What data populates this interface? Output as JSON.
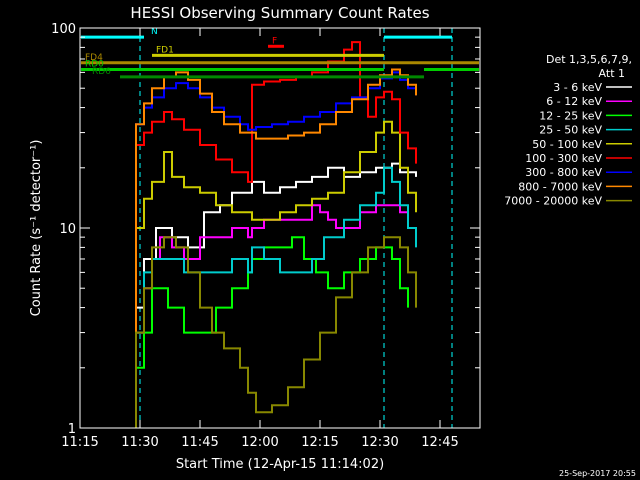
{
  "chart_data": {
    "type": "line",
    "title": "HESSI Observing Summary Count Rates",
    "xlabel": "Start Time (12-Apr-15 11:14:02)",
    "ylabel": "Count Rate (s⁻¹ detector⁻¹)",
    "x_unit": "minutes",
    "xlim": [
      0,
      100
    ],
    "ylim": [
      1,
      100
    ],
    "y_scale": "log",
    "x_ticks": [
      {
        "x": 0,
        "label": "11:15"
      },
      {
        "x": 15,
        "label": "11:30"
      },
      {
        "x": 30,
        "label": "11:45"
      },
      {
        "x": 45,
        "label": "12:00"
      },
      {
        "x": 60,
        "label": "12:15"
      },
      {
        "x": 75,
        "label": "12:30"
      },
      {
        "x": 90,
        "label": "12:45"
      }
    ],
    "y_ticks": [
      {
        "y": 1,
        "label": "1"
      },
      {
        "y": 10,
        "label": "10"
      },
      {
        "y": 100,
        "label": "100"
      }
    ],
    "legend": {
      "header1": "Det 1,3,5,6,7,9,",
      "header2": "Att 1",
      "placement": "right"
    },
    "series": [
      {
        "name": "3 - 6 keV",
        "color": "#ffffff",
        "points": [
          [
            14,
            4
          ],
          [
            16,
            7
          ],
          [
            19,
            10
          ],
          [
            23,
            9
          ],
          [
            27,
            8
          ],
          [
            31,
            12
          ],
          [
            35,
            13
          ],
          [
            38,
            15
          ],
          [
            42,
            15
          ],
          [
            43,
            17
          ],
          [
            46,
            15
          ],
          [
            50,
            16
          ],
          [
            54,
            17
          ],
          [
            58,
            18
          ],
          [
            62,
            20
          ],
          [
            66,
            18
          ],
          [
            70,
            19
          ],
          [
            74,
            20
          ],
          [
            78,
            21
          ],
          [
            80,
            19
          ],
          [
            84,
            18
          ]
        ]
      },
      {
        "name": "6 - 12 keV",
        "color": "#ff00ff",
        "points": [
          [
            14,
            3
          ],
          [
            16,
            5
          ],
          [
            18,
            7
          ],
          [
            20,
            9
          ],
          [
            23,
            8
          ],
          [
            26,
            7
          ],
          [
            30,
            9
          ],
          [
            34,
            9
          ],
          [
            38,
            10
          ],
          [
            42,
            9
          ],
          [
            43,
            10
          ],
          [
            46,
            11
          ],
          [
            50,
            11
          ],
          [
            54,
            11
          ],
          [
            58,
            13
          ],
          [
            60,
            12
          ],
          [
            62,
            11
          ],
          [
            64,
            10
          ],
          [
            66,
            10
          ],
          [
            70,
            12
          ],
          [
            74,
            13
          ],
          [
            78,
            13
          ],
          [
            80,
            12
          ],
          [
            82,
            10
          ],
          [
            84,
            9
          ]
        ]
      },
      {
        "name": "12 - 25 keV",
        "color": "#00ff00",
        "points": [
          [
            14,
            2
          ],
          [
            16,
            3
          ],
          [
            18,
            5
          ],
          [
            22,
            4
          ],
          [
            26,
            3
          ],
          [
            30,
            3
          ],
          [
            34,
            4
          ],
          [
            38,
            5
          ],
          [
            42,
            6
          ],
          [
            43,
            7
          ],
          [
            46,
            8
          ],
          [
            50,
            8
          ],
          [
            53,
            9
          ],
          [
            56,
            7
          ],
          [
            59,
            6
          ],
          [
            62,
            5
          ],
          [
            66,
            6
          ],
          [
            70,
            7
          ],
          [
            74,
            8
          ],
          [
            78,
            7
          ],
          [
            80,
            5
          ],
          [
            82,
            4
          ]
        ]
      },
      {
        "name": "25 - 50 keV",
        "color": "#00cccc",
        "points": [
          [
            14,
            3
          ],
          [
            16,
            6
          ],
          [
            18,
            7
          ],
          [
            22,
            7
          ],
          [
            26,
            6
          ],
          [
            30,
            6
          ],
          [
            34,
            6
          ],
          [
            38,
            7
          ],
          [
            42,
            6
          ],
          [
            43,
            8
          ],
          [
            46,
            7
          ],
          [
            50,
            6
          ],
          [
            54,
            6
          ],
          [
            58,
            7
          ],
          [
            61,
            9
          ],
          [
            63,
            9
          ],
          [
            66,
            11
          ],
          [
            70,
            13
          ],
          [
            74,
            15
          ],
          [
            76,
            20
          ],
          [
            78,
            17
          ],
          [
            80,
            13
          ],
          [
            82,
            10
          ],
          [
            84,
            8
          ]
        ]
      },
      {
        "name": "50 - 100 keV",
        "color": "#cccc00",
        "points": [
          [
            14,
            10
          ],
          [
            16,
            14
          ],
          [
            18,
            17
          ],
          [
            21,
            24
          ],
          [
            23,
            18
          ],
          [
            26,
            16
          ],
          [
            30,
            15
          ],
          [
            34,
            13
          ],
          [
            38,
            12
          ],
          [
            42,
            12
          ],
          [
            43,
            11
          ],
          [
            46,
            11
          ],
          [
            50,
            12
          ],
          [
            54,
            13
          ],
          [
            58,
            14
          ],
          [
            62,
            15
          ],
          [
            66,
            19
          ],
          [
            70,
            24
          ],
          [
            74,
            30
          ],
          [
            76,
            34
          ],
          [
            78,
            30
          ],
          [
            80,
            20
          ],
          [
            82,
            15
          ],
          [
            84,
            12
          ]
        ]
      },
      {
        "name": "100 - 300 keV",
        "color": "#ff0000",
        "points": [
          [
            14,
            26
          ],
          [
            16,
            30
          ],
          [
            18,
            34
          ],
          [
            21,
            38
          ],
          [
            23,
            35
          ],
          [
            26,
            31
          ],
          [
            30,
            26
          ],
          [
            34,
            22
          ],
          [
            38,
            19
          ],
          [
            42,
            17
          ],
          [
            43,
            52
          ],
          [
            46,
            54
          ],
          [
            50,
            55
          ],
          [
            54,
            57
          ],
          [
            58,
            60
          ],
          [
            62,
            68
          ],
          [
            66,
            78
          ],
          [
            68,
            85
          ],
          [
            70,
            45
          ],
          [
            72,
            36
          ],
          [
            74,
            45
          ],
          [
            76,
            48
          ],
          [
            78,
            44
          ],
          [
            80,
            30
          ],
          [
            82,
            25
          ],
          [
            84,
            21
          ]
        ]
      },
      {
        "name": "300 - 800 keV",
        "color": "#0000ff",
        "points": [
          [
            14,
            33
          ],
          [
            16,
            40
          ],
          [
            18,
            45
          ],
          [
            21,
            50
          ],
          [
            24,
            53
          ],
          [
            27,
            50
          ],
          [
            30,
            45
          ],
          [
            33,
            40
          ],
          [
            36,
            36
          ],
          [
            40,
            33
          ],
          [
            42,
            31
          ],
          [
            44,
            32
          ],
          [
            48,
            33
          ],
          [
            52,
            34
          ],
          [
            56,
            36
          ],
          [
            60,
            38
          ],
          [
            64,
            42
          ],
          [
            68,
            45
          ],
          [
            72,
            50
          ],
          [
            75,
            56
          ],
          [
            78,
            60
          ],
          [
            80,
            55
          ],
          [
            82,
            50
          ],
          [
            84,
            46
          ]
        ]
      },
      {
        "name": "800 - 7000 keV",
        "color": "#ff8800",
        "points": [
          [
            14,
            33
          ],
          [
            16,
            42
          ],
          [
            18,
            50
          ],
          [
            21,
            57
          ],
          [
            24,
            60
          ],
          [
            27,
            55
          ],
          [
            30,
            47
          ],
          [
            33,
            38
          ],
          [
            36,
            33
          ],
          [
            40,
            30
          ],
          [
            44,
            28
          ],
          [
            48,
            28
          ],
          [
            52,
            29
          ],
          [
            56,
            30
          ],
          [
            60,
            33
          ],
          [
            64,
            38
          ],
          [
            68,
            44
          ],
          [
            72,
            52
          ],
          [
            75,
            58
          ],
          [
            78,
            62
          ],
          [
            80,
            58
          ],
          [
            82,
            52
          ],
          [
            84,
            46
          ]
        ]
      },
      {
        "name": "7000 - 20000 keV",
        "color": "#888800",
        "points": [
          [
            14,
            3
          ],
          [
            16,
            5
          ],
          [
            18,
            8
          ],
          [
            21,
            9
          ],
          [
            24,
            8
          ],
          [
            27,
            6
          ],
          [
            30,
            4
          ],
          [
            33,
            3
          ],
          [
            36,
            2.5
          ],
          [
            40,
            2
          ],
          [
            42,
            1.5
          ],
          [
            44,
            1.2
          ],
          [
            48,
            1.3
          ],
          [
            52,
            1.6
          ],
          [
            56,
            2.2
          ],
          [
            60,
            3
          ],
          [
            64,
            4.5
          ],
          [
            68,
            6
          ],
          [
            72,
            8
          ],
          [
            76,
            9
          ],
          [
            80,
            8
          ],
          [
            82,
            6
          ],
          [
            84,
            4
          ]
        ]
      }
    ],
    "flags": [
      {
        "label": "N",
        "color": "#00ffff",
        "y": 90,
        "segments": [
          [
            -1,
            16
          ],
          [
            76,
            93
          ]
        ]
      },
      {
        "label": "F",
        "color": "#ff0000",
        "y": 81,
        "segments": [
          [
            47,
            51
          ]
        ]
      },
      {
        "label": "FD1",
        "color": "#cccc00",
        "y": 73,
        "segments": [
          [
            18,
            76
          ]
        ]
      },
      {
        "label": "FD4",
        "color": "#aa8800",
        "y": 67,
        "segments": [
          [
            -1,
            100
          ]
        ]
      },
      {
        "label": "RD0",
        "color": "#00cc00",
        "y": 62,
        "segments": [
          [
            -1,
            76
          ],
          [
            86,
            100
          ]
        ]
      },
      {
        "label": "RD6",
        "color": "#008800",
        "y": 57,
        "segments": [
          [
            10,
            86
          ]
        ]
      }
    ],
    "vlines": [
      {
        "x": 15,
        "color": "#00ffff"
      },
      {
        "x": 76,
        "color": "#00ffff"
      },
      {
        "x": 93,
        "color": "#00ffff"
      }
    ],
    "footer_stamp": "25-Sep-2017 20:55"
  }
}
